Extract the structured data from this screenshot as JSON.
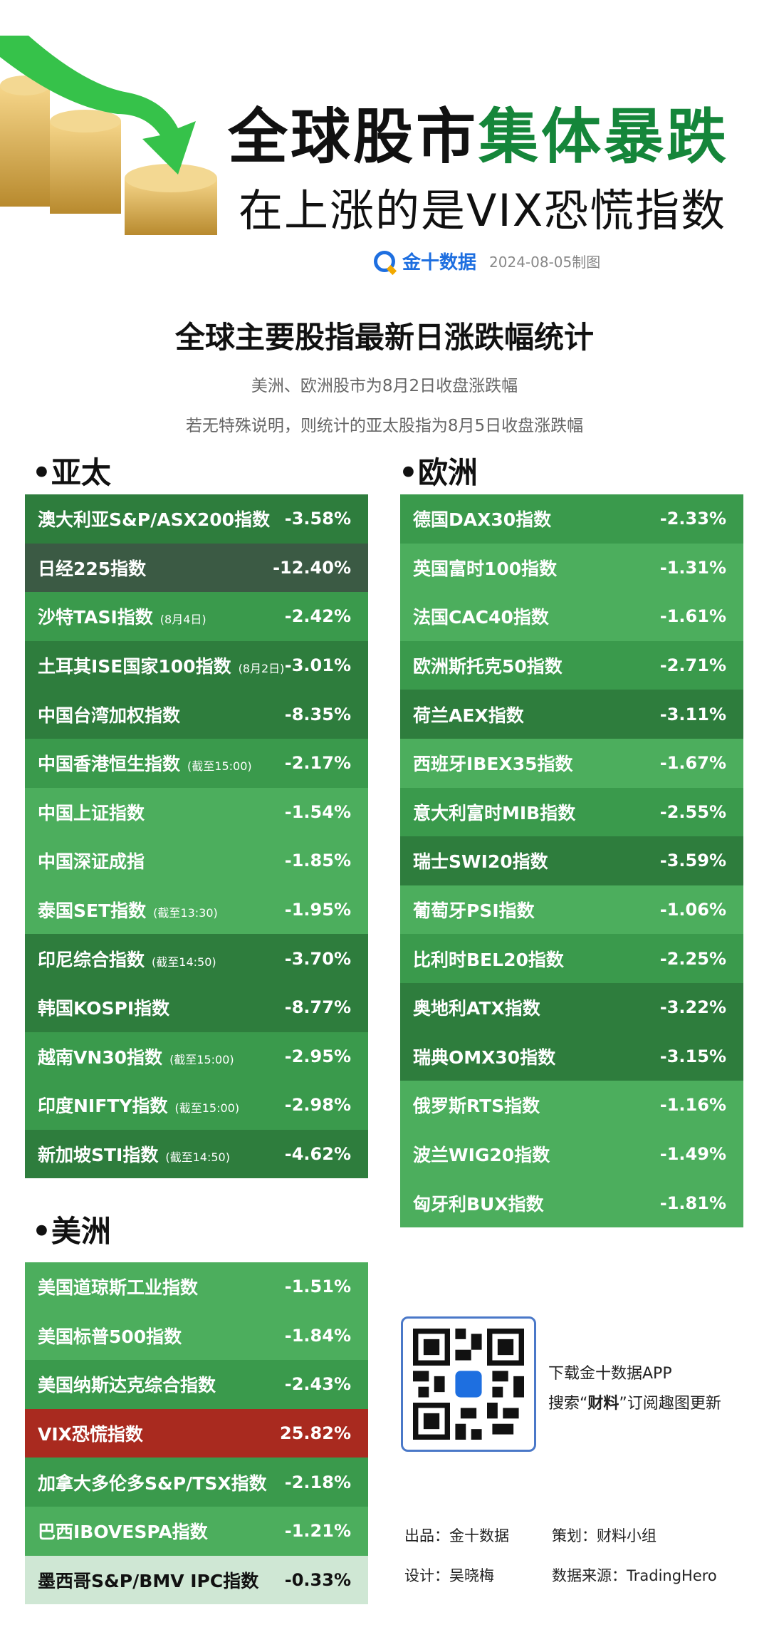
{
  "header": {
    "title_black": "全球股市",
    "title_green": "集体暴跌",
    "subtitle": "在上涨的是VIX恐慌指数",
    "brand": "金十数据",
    "date": "2024-08-05制图"
  },
  "chart_title": "全球主要股指最新日涨跌幅统计",
  "notes": [
    "美洲、欧洲股市为8月2日收盘涨跌幅",
    "若无特殊说明，则统计的亚太股指为8月5日收盘涨跌幅"
  ],
  "sections": {
    "asia": "•亚太",
    "europe": "•欧洲",
    "americas": "•美洲"
  },
  "colors": {
    "light_green": "#4cae5d",
    "mid_green": "#3a9a4c",
    "dark_green": "#2e7d3d",
    "darkest": "#3b5a44",
    "red": "#a92a1f",
    "pale": "#cfe7d4"
  },
  "asia": [
    {
      "name": "澳大利亚S&P/ASX200指数",
      "note": "",
      "value": "-3.58%",
      "shade": "dark_green"
    },
    {
      "name": "日经225指数",
      "note": "",
      "value": "-12.40%",
      "shade": "darkest"
    },
    {
      "name": "沙特TASI指数",
      "note": "(8月4日)",
      "value": "-2.42%",
      "shade": "mid_green"
    },
    {
      "name": "土耳其ISE国家100指数",
      "note": "(8月2日)",
      "value": "-3.01%",
      "shade": "dark_green"
    },
    {
      "name": "中国台湾加权指数",
      "note": "",
      "value": "-8.35%",
      "shade": "dark_green"
    },
    {
      "name": "中国香港恒生指数",
      "note": "(截至15:00)",
      "value": "-2.17%",
      "shade": "mid_green"
    },
    {
      "name": "中国上证指数",
      "note": "",
      "value": "-1.54%",
      "shade": "light_green"
    },
    {
      "name": "中国深证成指",
      "note": "",
      "value": "-1.85%",
      "shade": "light_green"
    },
    {
      "name": "泰国SET指数",
      "note": "(截至13:30)",
      "value": "-1.95%",
      "shade": "light_green"
    },
    {
      "name": "印尼综合指数",
      "note": "(截至14:50)",
      "value": "-3.70%",
      "shade": "dark_green"
    },
    {
      "name": "韩国KOSPI指数",
      "note": "",
      "value": "-8.77%",
      "shade": "dark_green"
    },
    {
      "name": "越南VN30指数",
      "note": "(截至15:00)",
      "value": "-2.95%",
      "shade": "mid_green"
    },
    {
      "name": "印度NIFTY指数",
      "note": "(截至15:00)",
      "value": "-2.98%",
      "shade": "mid_green"
    },
    {
      "name": "新加坡STI指数",
      "note": "(截至14:50)",
      "value": "-4.62%",
      "shade": "dark_green"
    }
  ],
  "europe": [
    {
      "name": "德国DAX30指数",
      "value": "-2.33%",
      "shade": "mid_green"
    },
    {
      "name": "英国富时100指数",
      "value": "-1.31%",
      "shade": "light_green"
    },
    {
      "name": "法国CAC40指数",
      "value": "-1.61%",
      "shade": "light_green"
    },
    {
      "name": "欧洲斯托克50指数",
      "value": "-2.71%",
      "shade": "mid_green"
    },
    {
      "name": "荷兰AEX指数",
      "value": "-3.11%",
      "shade": "dark_green"
    },
    {
      "name": "西班牙IBEX35指数",
      "value": "-1.67%",
      "shade": "light_green"
    },
    {
      "name": "意大利富时MIB指数",
      "value": "-2.55%",
      "shade": "mid_green"
    },
    {
      "name": "瑞士SWI20指数",
      "value": "-3.59%",
      "shade": "dark_green"
    },
    {
      "name": "葡萄牙PSI指数",
      "value": "-1.06%",
      "shade": "light_green"
    },
    {
      "name": "比利时BEL20指数",
      "value": "-2.25%",
      "shade": "mid_green"
    },
    {
      "name": "奥地利ATX指数",
      "value": "-3.22%",
      "shade": "dark_green"
    },
    {
      "name": "瑞典OMX30指数",
      "value": "-3.15%",
      "shade": "dark_green"
    },
    {
      "name": "俄罗斯RTS指数",
      "value": "-1.16%",
      "shade": "light_green"
    },
    {
      "name": "波兰WIG20指数",
      "value": "-1.49%",
      "shade": "light_green"
    },
    {
      "name": "匈牙利BUX指数",
      "value": "-1.81%",
      "shade": "light_green"
    }
  ],
  "americas": [
    {
      "name": "美国道琼斯工业指数",
      "value": "-1.51%",
      "shade": "light_green"
    },
    {
      "name": "美国标普500指数",
      "value": "-1.84%",
      "shade": "light_green"
    },
    {
      "name": "美国纳斯达克综合指数",
      "value": "-2.43%",
      "shade": "mid_green"
    },
    {
      "name": "VIX恐慌指数",
      "value": "25.82%",
      "shade": "red"
    },
    {
      "name": "加拿大多伦多S&P/TSX指数",
      "value": "-2.18%",
      "shade": "mid_green"
    },
    {
      "name": "巴西IBOVESPA指数",
      "value": "-1.21%",
      "shade": "light_green"
    },
    {
      "name": "墨西哥S&P/BMV IPC指数",
      "value": "-0.33%",
      "shade": "pale"
    }
  ],
  "app": {
    "line1": "下载金十数据APP",
    "line2_pre": "搜索“",
    "line2_bold": "财料",
    "line2_post": "”订阅趣图更新"
  },
  "footer": {
    "producer_label": "出品：",
    "producer": "金十数据",
    "planner_label": "策划：",
    "planner": "财料小组",
    "designer_label": "设计：",
    "designer": "吴晓梅",
    "source_label": "数据来源：",
    "source": "TradingHero"
  }
}
